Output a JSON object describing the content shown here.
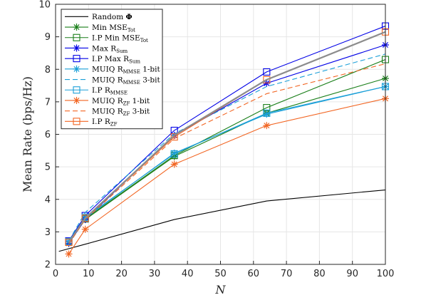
{
  "chart_data": {
    "type": "line",
    "x": [
      4,
      9,
      36,
      64,
      100
    ],
    "xlabel": "N",
    "ylabel": "Mean Rate (bps/Hz)",
    "xlim": [
      0,
      100
    ],
    "ylim": [
      2,
      10
    ],
    "xticks": [
      "0",
      "10",
      "20",
      "30",
      "40",
      "50",
      "60",
      "70",
      "80",
      "90",
      "100"
    ],
    "yticks": [
      "2",
      "3",
      "4",
      "5",
      "6",
      "7",
      "8",
      "9",
      "10"
    ],
    "grid": true,
    "legend_position": "top-left",
    "series": [
      {
        "name": "Random Φ",
        "legend_main": "Random ",
        "legend_sym": "Φ",
        "legend_sub": "",
        "legend_tail": "",
        "color": "#000000",
        "dash": "",
        "marker": "none",
        "width": 1.1,
        "values": [
          2.4,
          2.62,
          3.38,
          3.95,
          4.29
        ],
        "x": [
          1,
          9,
          36,
          64,
          100
        ]
      },
      {
        "name": "Min MSE_Tot",
        "legend_main": "Min MSE",
        "legend_sub": "Tot",
        "legend_tail": "",
        "color": "#1a7f1a",
        "dash": "",
        "marker": "star",
        "width": 1.1,
        "values": [
          2.65,
          3.38,
          5.32,
          6.65,
          7.72
        ]
      },
      {
        "name": "I.P Min MSE_Tot",
        "legend_main": "I.P Min MSE",
        "legend_sub": "Tot",
        "legend_tail": "",
        "color": "#1a7f1a",
        "dash": "",
        "marker": "square",
        "width": 1.1,
        "values": [
          2.68,
          3.4,
          5.35,
          6.82,
          8.3
        ]
      },
      {
        "name": "Max R_Sum",
        "legend_main": "Max R",
        "legend_sub": "Sum",
        "legend_tail": "",
        "color": "#0000e6",
        "dash": "",
        "marker": "star",
        "width": 1.1,
        "values": [
          2.65,
          3.38,
          5.97,
          7.57,
          8.75
        ]
      },
      {
        "name": "I.P Max R_Sum",
        "legend_main": "I.P Max R",
        "legend_sub": "Sum",
        "legend_tail": "",
        "color": "#0000e6",
        "dash": "",
        "marker": "square",
        "width": 1.1,
        "values": [
          2.72,
          3.5,
          6.12,
          7.92,
          9.33
        ]
      },
      {
        "name": "MUIQ R_MMSE 1-bit",
        "legend_main": "MUIQ R",
        "legend_sub": "MMSE",
        "legend_tail": " 1-bit",
        "color": "#1a9fd8",
        "dash": "",
        "marker": "star",
        "width": 1.1,
        "values": [
          2.7,
          3.42,
          5.42,
          6.62,
          7.47
        ]
      },
      {
        "name": "MUIQ R_MMSE 3-bit",
        "legend_main": "MUIQ R",
        "legend_sub": "MMSE",
        "legend_tail": " 3-bit",
        "color": "#1a9fd8",
        "dash": "7 4",
        "marker": "none",
        "width": 1.1,
        "values": [
          2.72,
          3.6,
          6.02,
          7.47,
          8.47
        ]
      },
      {
        "name": "I.P R_MMSE",
        "legend_main": "I.P R",
        "legend_sub": "MMSE",
        "legend_tail": "",
        "color": "#1a9fd8",
        "dash": "",
        "marker": "square",
        "width": 1.1,
        "values": [
          2.7,
          3.45,
          5.4,
          6.65,
          7.47
        ]
      },
      {
        "name": "MUIQ R_ZF 1-bit",
        "legend_main": "MUIQ R",
        "legend_sub": "ZF",
        "legend_tail": " 1-bit",
        "color": "#f26522",
        "dash": "",
        "marker": "star",
        "width": 1.1,
        "values": [
          2.32,
          3.08,
          5.08,
          6.27,
          7.1
        ]
      },
      {
        "name": "MUIQ R_ZF 3-bit",
        "legend_main": "MUIQ R",
        "legend_sub": "ZF",
        "legend_tail": " 3-bit",
        "color": "#f26522",
        "dash": "7 4",
        "marker": "none",
        "width": 1.1,
        "values": [
          2.62,
          3.38,
          5.87,
          7.25,
          8.17
        ]
      },
      {
        "name": "I.P R_ZF",
        "legend_main": "I.P R",
        "legend_sub": "ZF",
        "legend_tail": "",
        "color": "#f26522",
        "dash": "",
        "marker": "square",
        "width": 1.1,
        "values": [
          2.68,
          3.42,
          5.92,
          7.68,
          9.15
        ]
      },
      {
        "name": "",
        "legend_main": "",
        "legend_sub": "",
        "legend_tail": "",
        "color": "#8c8c8c",
        "dash": "",
        "marker": "none",
        "width": 2.2,
        "in_legend": false,
        "values": [
          2.68,
          3.42,
          5.97,
          7.68,
          9.15
        ]
      }
    ]
  }
}
